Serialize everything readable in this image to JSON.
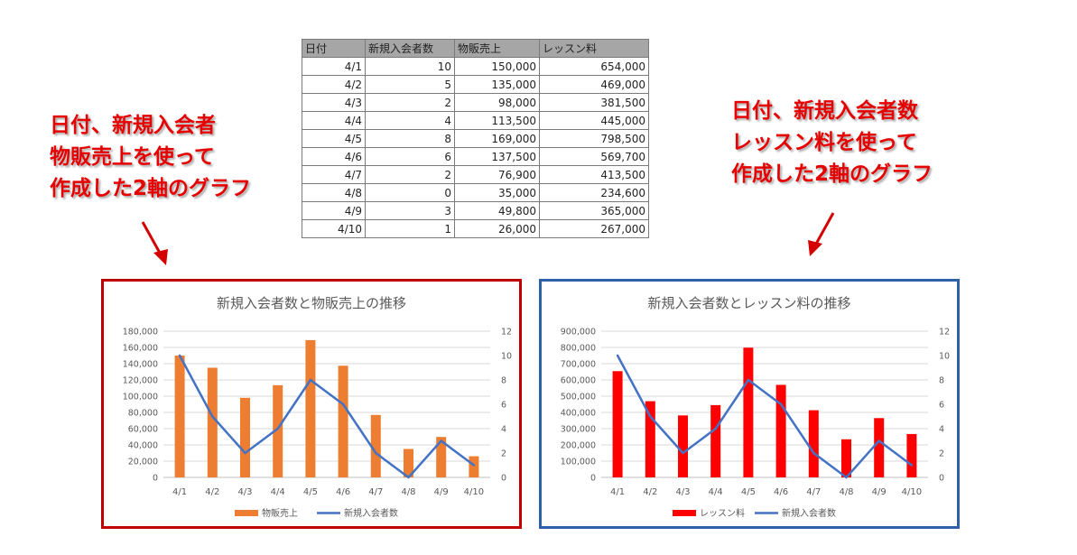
{
  "table": {
    "headers": [
      "日付",
      "新規入会者数",
      "物販売上",
      "レッスン料"
    ],
    "rows": [
      [
        "4/1",
        "10",
        "150,000",
        "654,000"
      ],
      [
        "4/2",
        "5",
        "135,000",
        "469,000"
      ],
      [
        "4/3",
        "2",
        "98,000",
        "381,500"
      ],
      [
        "4/4",
        "4",
        "113,500",
        "445,000"
      ],
      [
        "4/5",
        "8",
        "169,000",
        "798,500"
      ],
      [
        "4/6",
        "6",
        "137,500",
        "569,700"
      ],
      [
        "4/7",
        "2",
        "76,900",
        "413,500"
      ],
      [
        "4/8",
        "0",
        "35,000",
        "234,600"
      ],
      [
        "4/9",
        "3",
        "49,800",
        "365,000"
      ],
      [
        "4/10",
        "1",
        "26,000",
        "267,000"
      ]
    ]
  },
  "notes": {
    "left": [
      "日付、新規入会者",
      "物販売上を使って",
      "作成した2軸のグラフ"
    ],
    "right": [
      "日付、新規入会者数",
      "レッスン料を使って",
      "作成した2軸のグラフ"
    ]
  },
  "colors": {
    "note_text": "#e60000",
    "left_frame": "#c00000",
    "right_frame": "#2e5fa8",
    "bar_left": "#ed7d31",
    "bar_right": "#ff0000",
    "line": "#4472c4"
  },
  "chart_data": [
    {
      "type": "bar",
      "title": "新規入会者数と物販売上の推移",
      "categories": [
        "4/1",
        "4/2",
        "4/3",
        "4/4",
        "4/5",
        "4/6",
        "4/7",
        "4/8",
        "4/9",
        "4/10"
      ],
      "series": [
        {
          "name": "物販売上",
          "type": "bar",
          "axis": "left",
          "color": "#ed7d31",
          "values": [
            150000,
            135000,
            98000,
            113500,
            169000,
            137500,
            76900,
            35000,
            49800,
            26000
          ]
        },
        {
          "name": "新規入会者数",
          "type": "line",
          "axis": "right",
          "color": "#4472c4",
          "values": [
            10,
            5,
            2,
            4,
            8,
            6,
            2,
            0,
            3,
            1
          ]
        }
      ],
      "ylim": [
        0,
        180000
      ],
      "y_ticks": [
        "0",
        "20,000",
        "40,000",
        "60,000",
        "80,000",
        "100,000",
        "120,000",
        "140,000",
        "160,000",
        "180,000"
      ],
      "y2lim": [
        0,
        12
      ],
      "y2_ticks": [
        "0",
        "2",
        "4",
        "6",
        "8",
        "10",
        "12"
      ],
      "grid": true,
      "legend": "bottom"
    },
    {
      "type": "bar",
      "title": "新規入会者数とレッスン料の推移",
      "categories": [
        "4/1",
        "4/2",
        "4/3",
        "4/4",
        "4/5",
        "4/6",
        "4/7",
        "4/8",
        "4/9",
        "4/10"
      ],
      "series": [
        {
          "name": "レッスン料",
          "type": "bar",
          "axis": "left",
          "color": "#ff0000",
          "values": [
            654000,
            469000,
            381500,
            445000,
            798500,
            569700,
            413500,
            234600,
            365000,
            267000
          ]
        },
        {
          "name": "新規入会者数",
          "type": "line",
          "axis": "right",
          "color": "#4472c4",
          "values": [
            10,
            5,
            2,
            4,
            8,
            6,
            2,
            0,
            3,
            1
          ]
        }
      ],
      "ylim": [
        0,
        900000
      ],
      "y_ticks": [
        "0",
        "100,000",
        "200,000",
        "300,000",
        "400,000",
        "500,000",
        "600,000",
        "700,000",
        "800,000",
        "900,000"
      ],
      "y2lim": [
        0,
        12
      ],
      "y2_ticks": [
        "0",
        "2",
        "4",
        "6",
        "8",
        "10",
        "12"
      ],
      "grid": true,
      "legend": "bottom"
    }
  ]
}
